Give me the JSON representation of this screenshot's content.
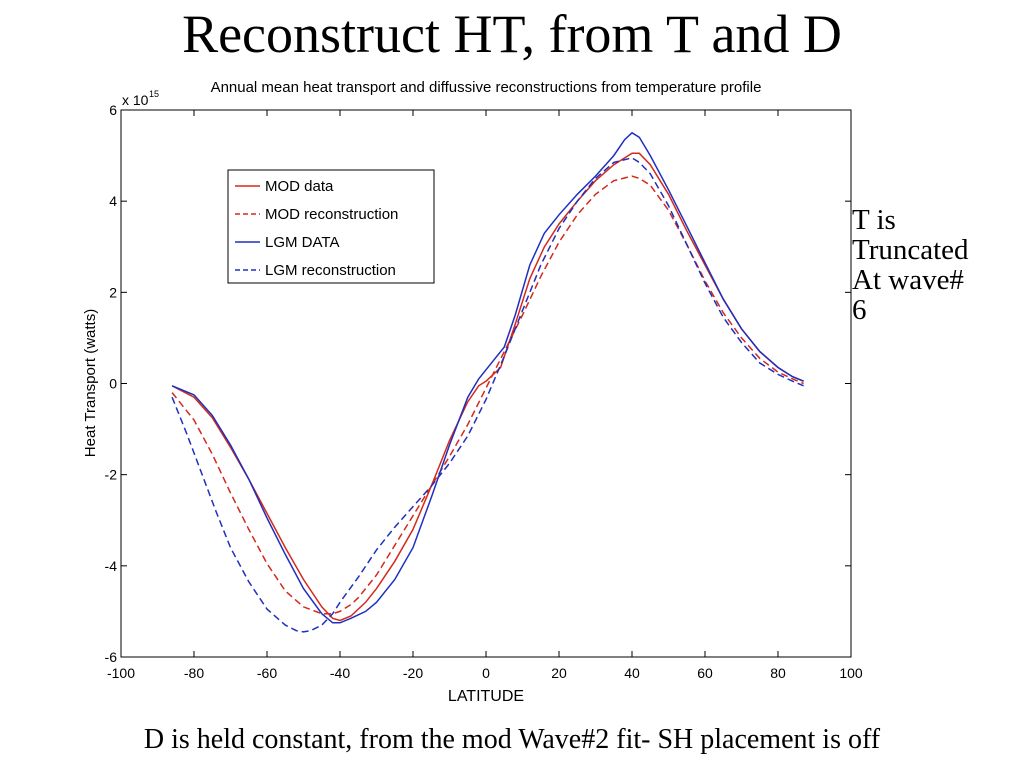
{
  "slide": {
    "title": "Reconstruct HT, from T and D",
    "side_note": [
      "T is",
      "Truncated",
      "At wave#",
      "6"
    ],
    "footer": "D is held constant, from the mod Wave#2 fit- SH placement is off"
  },
  "chart_data": {
    "type": "line",
    "title": "Annual mean heat transport and diffussive reconstructions from temperature profile",
    "xlabel": "LATITUDE",
    "ylabel": "Heat Transport (watts)",
    "y_scale_label": "x 10",
    "y_exponent": "15",
    "xlim": [
      -100,
      100
    ],
    "ylim": [
      -6,
      6
    ],
    "xticks": [
      -100,
      -80,
      -60,
      -40,
      -20,
      0,
      20,
      40,
      60,
      80,
      100
    ],
    "yticks": [
      -6,
      -4,
      -2,
      0,
      2,
      4,
      6
    ],
    "grid": false,
    "legend_position": "upper-left",
    "colors": {
      "mod": "#d42a1a",
      "lgm": "#1f2fbf"
    },
    "series": [
      {
        "name": "MOD data",
        "color": "#d42a1a",
        "dash": "solid",
        "x": [
          -86,
          -80,
          -75,
          -70,
          -65,
          -60,
          -55,
          -50,
          -45,
          -42,
          -40,
          -37,
          -33,
          -30,
          -25,
          -20,
          -15,
          -10,
          -5,
          -2,
          0,
          2,
          4,
          8,
          12,
          16,
          20,
          25,
          30,
          35,
          38,
          40,
          42,
          45,
          50,
          55,
          60,
          65,
          70,
          75,
          80,
          84,
          87
        ],
        "y": [
          -0.05,
          -0.3,
          -0.75,
          -1.4,
          -2.1,
          -2.85,
          -3.6,
          -4.3,
          -4.9,
          -5.15,
          -5.2,
          -5.1,
          -4.8,
          -4.5,
          -3.9,
          -3.2,
          -2.25,
          -1.25,
          -0.4,
          -0.05,
          0.05,
          0.2,
          0.35,
          1.3,
          2.3,
          3.0,
          3.5,
          4.0,
          4.45,
          4.8,
          4.95,
          5.05,
          5.05,
          4.8,
          4.15,
          3.35,
          2.6,
          1.85,
          1.2,
          0.7,
          0.35,
          0.15,
          0.05
        ]
      },
      {
        "name": "MOD reconstruction",
        "color": "#d42a1a",
        "dash": "dashed",
        "x": [
          -86,
          -80,
          -75,
          -70,
          -65,
          -60,
          -55,
          -50,
          -45,
          -42,
          -40,
          -37,
          -35,
          -30,
          -25,
          -20,
          -15,
          -10,
          -5,
          0,
          5,
          10,
          15,
          20,
          25,
          30,
          35,
          40,
          42,
          45,
          50,
          55,
          60,
          65,
          70,
          75,
          80,
          84,
          87
        ],
        "y": [
          -0.2,
          -0.8,
          -1.55,
          -2.4,
          -3.2,
          -3.95,
          -4.55,
          -4.9,
          -5.05,
          -5.05,
          -5.0,
          -4.85,
          -4.7,
          -4.2,
          -3.55,
          -2.9,
          -2.25,
          -1.6,
          -0.9,
          -0.1,
          0.7,
          1.5,
          2.35,
          3.1,
          3.7,
          4.15,
          4.45,
          4.55,
          4.5,
          4.35,
          3.8,
          3.05,
          2.25,
          1.55,
          1.0,
          0.55,
          0.25,
          0.1,
          0.0
        ]
      },
      {
        "name": "LGM DATA",
        "color": "#1f2fbf",
        "dash": "solid",
        "x": [
          -86,
          -80,
          -75,
          -70,
          -65,
          -60,
          -55,
          -50,
          -45,
          -42,
          -40,
          -37,
          -33,
          -30,
          -25,
          -20,
          -15,
          -10,
          -5,
          -2,
          0,
          2,
          5,
          8,
          12,
          16,
          20,
          25,
          30,
          35,
          38,
          40,
          42,
          45,
          50,
          55,
          60,
          65,
          70,
          75,
          80,
          84,
          87
        ],
        "y": [
          -0.05,
          -0.25,
          -0.7,
          -1.35,
          -2.1,
          -2.95,
          -3.75,
          -4.5,
          -5.05,
          -5.25,
          -5.25,
          -5.15,
          -5.0,
          -4.8,
          -4.3,
          -3.6,
          -2.5,
          -1.35,
          -0.3,
          0.1,
          0.3,
          0.5,
          0.8,
          1.5,
          2.6,
          3.3,
          3.7,
          4.15,
          4.55,
          5.0,
          5.35,
          5.5,
          5.4,
          5.0,
          4.25,
          3.45,
          2.65,
          1.85,
          1.2,
          0.7,
          0.35,
          0.15,
          0.05
        ]
      },
      {
        "name": "LGM reconstruction",
        "color": "#1f2fbf",
        "dash": "dashed",
        "x": [
          -86,
          -82,
          -78,
          -74,
          -70,
          -65,
          -60,
          -55,
          -52,
          -50,
          -48,
          -45,
          -42,
          -40,
          -35,
          -30,
          -25,
          -20,
          -15,
          -10,
          -5,
          0,
          5,
          10,
          15,
          20,
          25,
          30,
          35,
          40,
          42,
          45,
          50,
          55,
          60,
          65,
          70,
          75,
          80,
          84,
          87
        ],
        "y": [
          -0.3,
          -1.1,
          -1.95,
          -2.8,
          -3.6,
          -4.35,
          -4.95,
          -5.3,
          -5.42,
          -5.45,
          -5.42,
          -5.3,
          -5.05,
          -4.8,
          -4.25,
          -3.65,
          -3.15,
          -2.7,
          -2.25,
          -1.75,
          -1.15,
          -0.35,
          0.6,
          1.6,
          2.6,
          3.4,
          4.0,
          4.5,
          4.85,
          4.95,
          4.85,
          4.6,
          3.9,
          3.05,
          2.2,
          1.45,
          0.9,
          0.45,
          0.2,
          0.05,
          -0.05
        ]
      }
    ]
  }
}
